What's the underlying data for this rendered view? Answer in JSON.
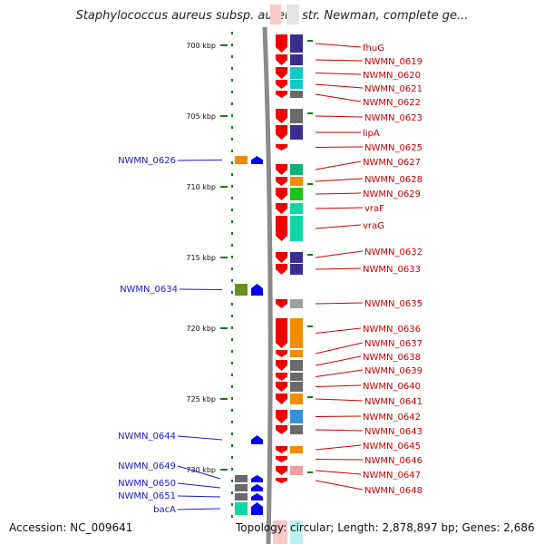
{
  "title": "Staphylococcus aureus subsp. aureus str. Newman, complete ge...",
  "footer": {
    "accession": "Accession: NC_009641",
    "topology": "Topology: circular; Length: 2,878,897 bp; Genes: 2,686"
  },
  "colors": {
    "backbone": "#8a8a8a",
    "tick": "#1b7a1b",
    "forward_label": "#cc0000",
    "reverse_label": "#1a1acc",
    "gene_forward": "#ee0000",
    "gene_reverse": "#0000ee"
  },
  "scale": {
    "ticks": [
      "700 kbp",
      "705 kbp",
      "710 kbp",
      "715 kbp",
      "720 kbp",
      "725 kbp",
      "730 kbp"
    ]
  },
  "forward_genes": [
    {
      "label": "fhuG",
      "cog": "#3a2e8f"
    },
    {
      "label": "NWMN_0619",
      "cog": "#3a2e8f"
    },
    {
      "label": "NWMN_0620",
      "cog": "#16c7c7"
    },
    {
      "label": "NWMN_0621",
      "cog": "#16c7c7"
    },
    {
      "label": "NWMN_0622",
      "cog": "#6a6a6a"
    },
    {
      "label": "NWMN_0623",
      "cog": "#6a6a6a"
    },
    {
      "label": "lipA",
      "cog": "#3a2e8f"
    },
    {
      "label": "NWMN_0625",
      "cog": ""
    },
    {
      "label": "NWMN_0627",
      "cog": "#14b07a"
    },
    {
      "label": "NWMN_0628",
      "cog": "#f08c00"
    },
    {
      "label": "NWMN_0629",
      "cog": "#20c020"
    },
    {
      "label": "vraF",
      "cog": "#13d6a6"
    },
    {
      "label": "vraG",
      "cog": "#13d6a6"
    },
    {
      "label": "NWMN_0632",
      "cog": "#3a2e8f"
    },
    {
      "label": "NWMN_0633",
      "cog": "#3a2e8f"
    },
    {
      "label": "NWMN_0635",
      "cog": "#a0a0a0"
    },
    {
      "label": "NWMN_0636",
      "cog": "#f08c00"
    },
    {
      "label": "NWMN_0637",
      "cog": "#f08c00"
    },
    {
      "label": "NWMN_0638",
      "cog": "#6a6a6a"
    },
    {
      "label": "NWMN_0639",
      "cog": "#6a6a6a"
    },
    {
      "label": "NWMN_0640",
      "cog": "#6a6a6a"
    },
    {
      "label": "NWMN_0641",
      "cog": "#f08c00"
    },
    {
      "label": "NWMN_0642",
      "cog": "#3a8fd6"
    },
    {
      "label": "NWMN_0643",
      "cog": "#6a6a6a"
    },
    {
      "label": "NWMN_0645",
      "cog": "#f08c00"
    },
    {
      "label": "NWMN_0646",
      "cog": ""
    },
    {
      "label": "NWMN_0647",
      "cog": "#f0a0a0"
    },
    {
      "label": "NWMN_0648",
      "cog": ""
    }
  ],
  "reverse_genes": [
    {
      "label": "NWMN_0626",
      "cog": "#f08c00"
    },
    {
      "label": "NWMN_0634",
      "cog": "#6b8e23"
    },
    {
      "label": "NWMN_0644",
      "cog": ""
    },
    {
      "label": "NWMN_0649",
      "cog": "#6a6a6a"
    },
    {
      "label": "NWMN_0650",
      "cog": "#6a6a6a"
    },
    {
      "label": "NWMN_0651",
      "cog": "#6a6a6a"
    },
    {
      "label": "bacA",
      "cog": "#13d6a6"
    }
  ]
}
